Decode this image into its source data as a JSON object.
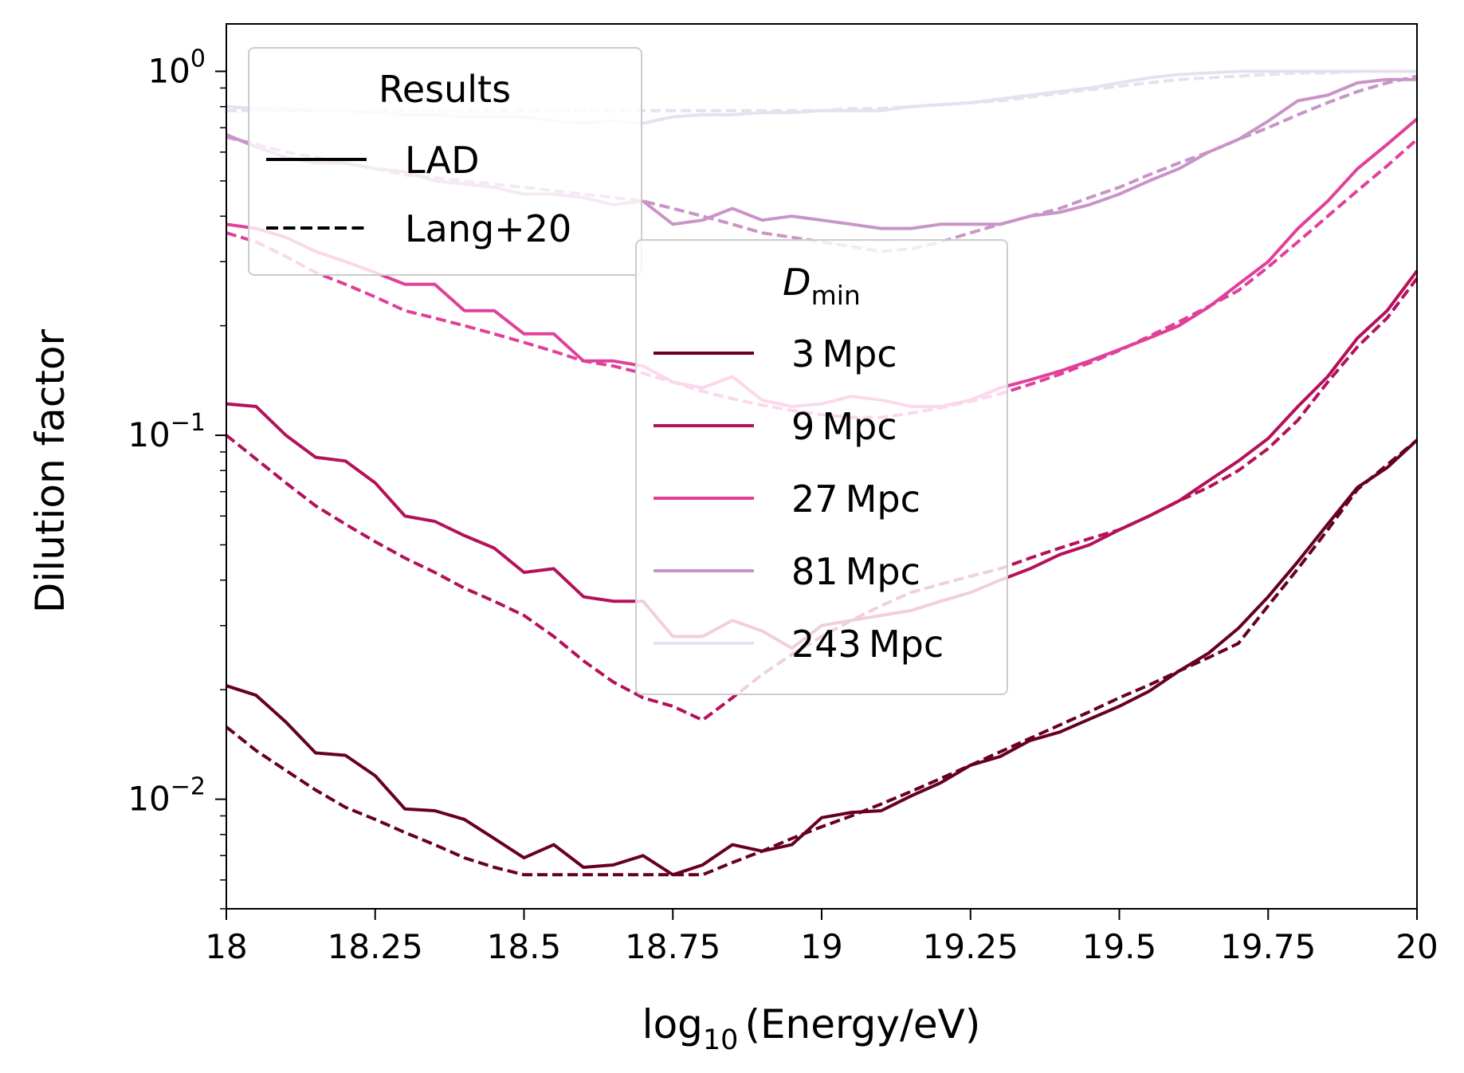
{
  "chart_data": {
    "type": "line",
    "xlabel_main": "log",
    "xlabel_sub": "10",
    "xlabel_rest": "(Energy/eV)",
    "ylabel": "Dilution factor",
    "yscale": "log",
    "xlim": [
      18,
      20
    ],
    "ylim": [
      0.005,
      1.35
    ],
    "x_ticks": [
      18,
      18.25,
      18.5,
      18.75,
      19,
      19.25,
      19.5,
      19.75,
      20
    ],
    "x_tick_labels": [
      "18",
      "18.25",
      "18.5",
      "18.75",
      "19",
      "19.25",
      "19.5",
      "19.75",
      "20"
    ],
    "y_ticks": [
      {
        "value": 1,
        "base": "10",
        "exp": "0"
      },
      {
        "value": 0.1,
        "base": "10",
        "exp": "−1"
      },
      {
        "value": 0.01,
        "base": "10",
        "exp": "−2"
      }
    ],
    "legend_results": {
      "title": "Results",
      "placement": "top-left",
      "entries": [
        {
          "label": "LAD",
          "style": "solid"
        },
        {
          "label": "Lang+20",
          "style": "dashed"
        }
      ]
    },
    "legend_dmin": {
      "title_main": "D",
      "title_sub": "min",
      "placement": "center",
      "entries": [
        {
          "label": "3 Mpc",
          "color": "#67001f"
        },
        {
          "label": "9 Mpc",
          "color": "#b5115a"
        },
        {
          "label": "27 Mpc",
          "color": "#e0409a"
        },
        {
          "label": "81 Mpc",
          "color": "#c994c7"
        },
        {
          "label": "243 Mpc",
          "color": "#e7e1ef"
        }
      ]
    },
    "x": [
      18.0,
      18.05,
      18.1,
      18.15,
      18.2,
      18.25,
      18.3,
      18.35,
      18.4,
      18.45,
      18.5,
      18.55,
      18.6,
      18.65,
      18.7,
      18.75,
      18.8,
      18.85,
      18.9,
      18.95,
      19.0,
      19.05,
      19.1,
      19.15,
      19.2,
      19.25,
      19.3,
      19.35,
      19.4,
      19.45,
      19.5,
      19.55,
      19.6,
      19.65,
      19.7,
      19.75,
      19.8,
      19.85,
      19.9,
      19.95,
      20.0
    ],
    "series": [
      {
        "label": "3 Mpc",
        "color": "#67001f",
        "lad": [
          0.0205,
          0.0193,
          0.0163,
          0.0134,
          0.0132,
          0.0116,
          0.0094,
          0.0093,
          0.0088,
          0.0078,
          0.0069,
          0.0075,
          0.0065,
          0.0066,
          0.007,
          0.0062,
          0.0066,
          0.0075,
          0.0072,
          0.0075,
          0.0089,
          0.0092,
          0.0093,
          0.0102,
          0.0111,
          0.0124,
          0.0131,
          0.0145,
          0.0153,
          0.0166,
          0.018,
          0.0198,
          0.0225,
          0.0252,
          0.0295,
          0.036,
          0.045,
          0.057,
          0.0719,
          0.0815,
          0.097
        ],
        "lang": [
          0.0158,
          0.0136,
          0.012,
          0.0106,
          0.0095,
          0.0088,
          0.0081,
          0.0075,
          0.0069,
          0.0065,
          0.0062,
          0.0062,
          0.0062,
          0.0062,
          0.0062,
          0.0062,
          0.0062,
          0.0067,
          0.0072,
          0.0078,
          0.0084,
          0.009,
          0.0097,
          0.0105,
          0.0114,
          0.0124,
          0.0135,
          0.0147,
          0.016,
          0.0174,
          0.019,
          0.0206,
          0.0225,
          0.0245,
          0.0268,
          0.034,
          0.043,
          0.055,
          0.071,
          0.083,
          0.097
        ]
      },
      {
        "label": "9 Mpc",
        "color": "#b5115a",
        "lad": [
          0.122,
          0.12,
          0.1,
          0.087,
          0.085,
          0.074,
          0.06,
          0.058,
          0.053,
          0.049,
          0.042,
          0.043,
          0.036,
          0.035,
          0.035,
          0.028,
          0.028,
          0.031,
          0.029,
          0.026,
          0.03,
          0.031,
          0.032,
          0.033,
          0.035,
          0.037,
          0.04,
          0.043,
          0.047,
          0.05,
          0.055,
          0.06,
          0.066,
          0.075,
          0.085,
          0.098,
          0.12,
          0.145,
          0.185,
          0.22,
          0.283
        ],
        "lang": [
          0.1,
          0.086,
          0.074,
          0.064,
          0.057,
          0.051,
          0.046,
          0.042,
          0.038,
          0.035,
          0.032,
          0.028,
          0.024,
          0.021,
          0.019,
          0.018,
          0.0165,
          0.019,
          0.022,
          0.025,
          0.028,
          0.031,
          0.034,
          0.037,
          0.039,
          0.041,
          0.043,
          0.046,
          0.049,
          0.052,
          0.055,
          0.06,
          0.066,
          0.072,
          0.08,
          0.092,
          0.11,
          0.14,
          0.175,
          0.21,
          0.27
        ]
      },
      {
        "label": "27 Mpc",
        "color": "#e0409a",
        "lad": [
          0.38,
          0.37,
          0.35,
          0.32,
          0.3,
          0.28,
          0.26,
          0.26,
          0.22,
          0.22,
          0.19,
          0.19,
          0.16,
          0.16,
          0.155,
          0.14,
          0.135,
          0.145,
          0.125,
          0.12,
          0.122,
          0.128,
          0.125,
          0.12,
          0.12,
          0.125,
          0.135,
          0.142,
          0.15,
          0.16,
          0.172,
          0.185,
          0.2,
          0.225,
          0.26,
          0.3,
          0.37,
          0.44,
          0.54,
          0.63,
          0.74
        ],
        "lang": [
          0.36,
          0.34,
          0.31,
          0.28,
          0.26,
          0.24,
          0.22,
          0.21,
          0.2,
          0.19,
          0.18,
          0.17,
          0.16,
          0.155,
          0.148,
          0.14,
          0.132,
          0.126,
          0.121,
          0.117,
          0.114,
          0.112,
          0.112,
          0.115,
          0.119,
          0.124,
          0.13,
          0.138,
          0.147,
          0.158,
          0.171,
          0.187,
          0.205,
          0.226,
          0.25,
          0.29,
          0.34,
          0.4,
          0.47,
          0.55,
          0.65
        ]
      },
      {
        "label": "81 Mpc",
        "color": "#c994c7",
        "lad": [
          0.67,
          0.62,
          0.58,
          0.56,
          0.56,
          0.54,
          0.53,
          0.5,
          0.49,
          0.48,
          0.46,
          0.46,
          0.45,
          0.43,
          0.44,
          0.38,
          0.39,
          0.42,
          0.39,
          0.4,
          0.39,
          0.38,
          0.37,
          0.37,
          0.38,
          0.38,
          0.38,
          0.4,
          0.41,
          0.43,
          0.46,
          0.5,
          0.54,
          0.6,
          0.65,
          0.73,
          0.83,
          0.86,
          0.93,
          0.95,
          0.95
        ],
        "lang": [
          0.66,
          0.63,
          0.6,
          0.58,
          0.56,
          0.54,
          0.52,
          0.51,
          0.5,
          0.49,
          0.48,
          0.47,
          0.46,
          0.45,
          0.44,
          0.42,
          0.4,
          0.38,
          0.36,
          0.35,
          0.34,
          0.33,
          0.32,
          0.325,
          0.34,
          0.36,
          0.38,
          0.4,
          0.42,
          0.45,
          0.48,
          0.52,
          0.56,
          0.6,
          0.65,
          0.7,
          0.76,
          0.82,
          0.88,
          0.93,
          0.97
        ]
      },
      {
        "label": "243 Mpc",
        "color": "#e7e1ef",
        "lad": [
          0.8,
          0.79,
          0.79,
          0.78,
          0.78,
          0.77,
          0.76,
          0.76,
          0.75,
          0.75,
          0.75,
          0.73,
          0.72,
          0.73,
          0.72,
          0.75,
          0.76,
          0.76,
          0.77,
          0.77,
          0.78,
          0.78,
          0.78,
          0.8,
          0.81,
          0.82,
          0.84,
          0.86,
          0.88,
          0.9,
          0.93,
          0.96,
          0.98,
          0.99,
          1.0,
          1.0,
          1.0,
          1.0,
          1.0,
          1.0,
          1.0
        ],
        "lang": [
          0.78,
          0.78,
          0.78,
          0.78,
          0.78,
          0.78,
          0.78,
          0.78,
          0.78,
          0.78,
          0.78,
          0.78,
          0.78,
          0.78,
          0.78,
          0.78,
          0.78,
          0.78,
          0.78,
          0.78,
          0.78,
          0.79,
          0.79,
          0.8,
          0.81,
          0.82,
          0.83,
          0.85,
          0.87,
          0.89,
          0.91,
          0.93,
          0.95,
          0.96,
          0.97,
          0.98,
          0.99,
          0.99,
          1.0,
          1.0,
          1.0
        ]
      }
    ]
  }
}
